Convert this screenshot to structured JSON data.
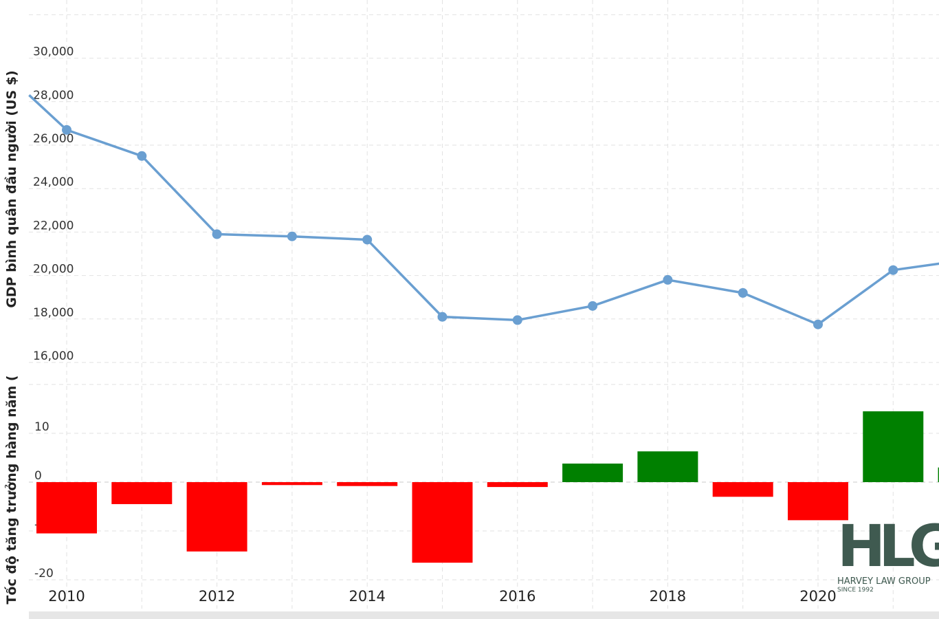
{
  "chart_data": [
    {
      "type": "line",
      "ylabel": "GDP bình quân đầu người (US $)",
      "ylim": [
        15000,
        32000
      ],
      "yticks": [
        "16,000",
        "18,000",
        "20,000",
        "22,000",
        "24,000",
        "26,000",
        "28,000",
        "30,000"
      ],
      "ytick_values": [
        16000,
        18000,
        20000,
        22000,
        24000,
        26000,
        28000,
        30000
      ],
      "x": [
        2009.5,
        2010,
        2011,
        2012,
        2013,
        2014,
        2015,
        2016,
        2017,
        2018,
        2019,
        2020,
        2021,
        2021.62
      ],
      "values": [
        28300,
        26700,
        25500,
        21900,
        21800,
        21650,
        18100,
        17950,
        18600,
        19800,
        19200,
        17750,
        20250,
        20550
      ],
      "markers_from_index": 1,
      "markers_to_index": 12,
      "color": "#6a9fd1",
      "grid": true
    },
    {
      "type": "bar",
      "ylabel": "Tốc độ tăng trưởng hàng năm (",
      "ylim": [
        -23,
        20
      ],
      "yticks": [
        "-20",
        "-10",
        "0",
        "10"
      ],
      "ytick_values": [
        -20,
        -10,
        0,
        10
      ],
      "categories": [
        2010,
        2011,
        2012,
        2013,
        2014,
        2015,
        2016,
        2017,
        2018,
        2019,
        2020,
        2021,
        2022
      ],
      "values": [
        -10.5,
        -4.5,
        -14.2,
        -0.6,
        -0.8,
        -16.5,
        -1.0,
        3.8,
        6.3,
        -3.0,
        -7.8,
        14.5,
        3.0
      ],
      "positive_color": "#008000",
      "negative_color": "#ff0000",
      "grid": true
    }
  ],
  "x_axis": {
    "ticks": [
      "2010",
      "2012",
      "2014",
      "2016",
      "2018",
      "2020"
    ],
    "tick_values": [
      2010,
      2012,
      2014,
      2016,
      2018,
      2020
    ]
  },
  "logo": {
    "mark": "HLG",
    "name": "HARVEY LAW GROUP",
    "since": "SINCE 1992"
  }
}
